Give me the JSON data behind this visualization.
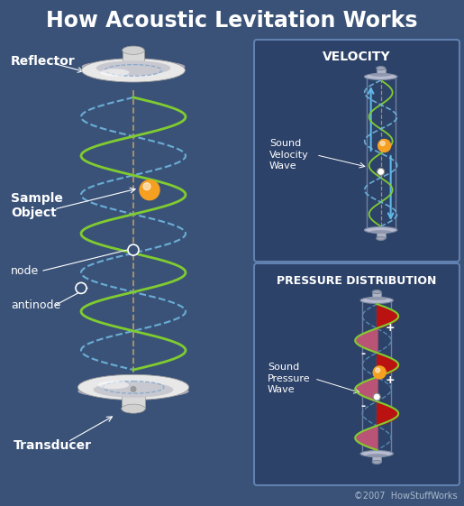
{
  "title": "How Acoustic Levitation Works",
  "bg_color": "#3a5278",
  "title_color": "#ffffff",
  "title_fontsize": 17,
  "panel_bg": "#2d4268",
  "panel_border": "#6080b0",
  "label_color": "#ffffff",
  "velocity_title": "VELOCITY",
  "pressure_title": "PRESSURE DISTRIBUTION",
  "velocity_label": "Sound\nVelocity\nWave",
  "pressure_label": "Sound\nPressure\nWave",
  "reflector_label": "Reflector",
  "sample_label": "Sample\nObject",
  "node_label": "node",
  "antinode_label": "antinode",
  "transducer_label": "Transducer",
  "copyright": "©2007  HowStuffWorks",
  "orange_ball": "#f5a020",
  "green_wave": "#80cc30",
  "dashed_wave": "#70b8e0",
  "axis_color": "#c8a060",
  "plus_color": "#bb1111",
  "minus_color": "#bb5577",
  "arrow_color": "#60b8e8",
  "dish_face": "#e8e8e8",
  "dish_inner": "#c8c8d0",
  "dish_shadow": "#aaaabc",
  "cyl_face": "#d8d8d8",
  "cyl_edge": "#999999"
}
